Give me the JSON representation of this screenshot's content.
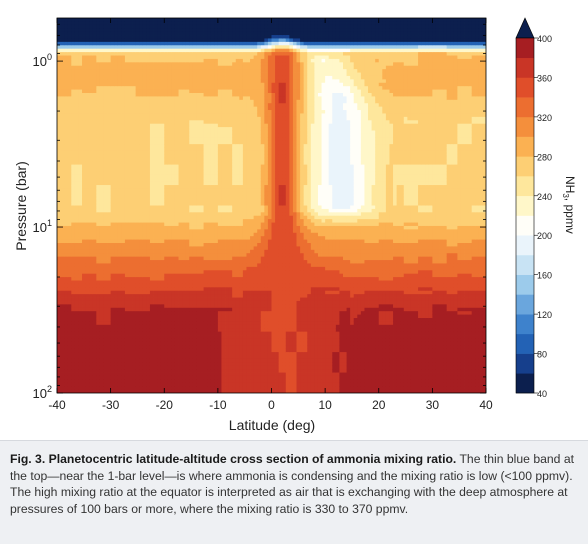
{
  "chart_data": {
    "type": "heatmap",
    "title": "",
    "xlabel": "Latitude (deg)",
    "ylabel": "Pressure (bar)",
    "x_ticks": [
      -40,
      -30,
      -20,
      -10,
      0,
      10,
      20,
      30,
      40
    ],
    "xlim": [
      -40,
      40
    ],
    "y_scale": "log",
    "y_inverted": true,
    "ylim_bar": [
      0.55,
      100
    ],
    "y_ticks": [
      {
        "value": 1,
        "base": "10",
        "exp": "0"
      },
      {
        "value": 10,
        "base": "10",
        "exp": "1"
      },
      {
        "value": 100,
        "base": "10",
        "exp": "2"
      }
    ],
    "colorbar": {
      "label": "NH₃, ppmv",
      "label_main": "NH",
      "label_sub": "3",
      "label_unit": ", ppmv",
      "extend": "min",
      "ticks": [
        40,
        80,
        120,
        160,
        200,
        240,
        280,
        320,
        360,
        400
      ],
      "levels": [
        40,
        60,
        80,
        100,
        120,
        140,
        160,
        180,
        200,
        220,
        240,
        260,
        280,
        300,
        320,
        340,
        360,
        380,
        400
      ],
      "colors": [
        "#0c1f4e",
        "#163f8c",
        "#2362b5",
        "#3e82cc",
        "#6aa6dd",
        "#9ccbeb",
        "#c8e3f4",
        "#eaf4fb",
        "#fffef8",
        "#fff7c9",
        "#fee79c",
        "#fdcf74",
        "#fbb152",
        "#f48f3c",
        "#ec6e30",
        "#e04e2a",
        "#c93526",
        "#a61e22"
      ]
    },
    "fields": [
      {
        "name": "background",
        "lat_range": [
          -40,
          40
        ],
        "pressure_bar": [
          1.0,
          3.0
        ],
        "ppmv_range": [
          230,
          250
        ]
      },
      {
        "name": "condensation_band",
        "lat_range": [
          -40,
          40
        ],
        "pressure_bar": [
          0.55,
          0.8
        ],
        "ppmv_range": [
          20,
          60
        ]
      },
      {
        "name": "upper_mixed_layer",
        "lat_range": [
          -40,
          40
        ],
        "pressure_bar": [
          0.85,
          2.0
        ],
        "ppmv_range": [
          240,
          300
        ]
      },
      {
        "name": "lower_gradient",
        "lat_range": [
          -40,
          40
        ],
        "pressure_bar": [
          10,
          30
        ],
        "ppmv_range": [
          250,
          350
        ]
      },
      {
        "name": "deep_atmosphere",
        "lat_range": [
          -40,
          40
        ],
        "pressure_bar": [
          30,
          100
        ],
        "ppmv_range": [
          350,
          370
        ]
      },
      {
        "name": "equatorial_plume",
        "lat_range": [
          0,
          4
        ],
        "pressure_bar": [
          0.7,
          100
        ],
        "ppmv_range": [
          330,
          370
        ]
      },
      {
        "name": "depleted_belt",
        "lat_range": [
          7,
          19
        ],
        "pressure_bar": [
          0.8,
          8
        ],
        "ppmv_range": [
          140,
          200
        ]
      }
    ]
  },
  "caption": {
    "heading": "Fig. 3. Planetocentric latitude-altitude cross section of ammonia mixing ratio.",
    "body": "The thin blue band at the top—near the 1-bar level—is where ammonia is condensing and the mixing ratio is low (<100 ppmv). The high mixing ratio at the equator is interpreted as air that is exchanging with the deep atmosphere at pressures of 100 bars or more, where the mixing ratio is 330 to 370 ppmv."
  }
}
